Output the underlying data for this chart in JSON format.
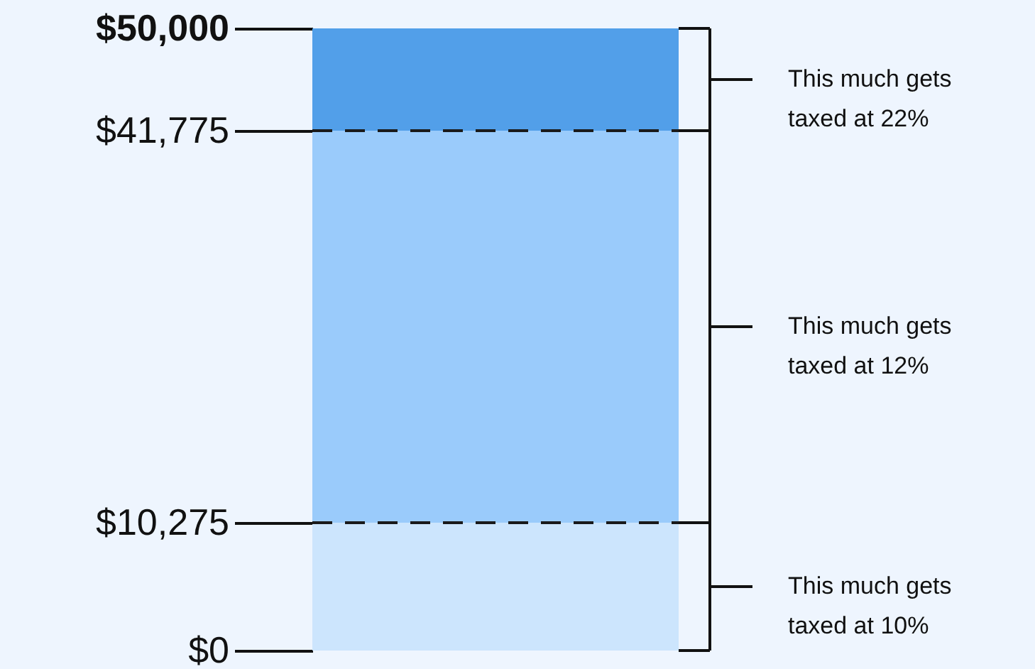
{
  "chart_data": {
    "type": "bar",
    "stacked": true,
    "categories": [
      null
    ],
    "series": [
      {
        "name": "This much gets taxed at 10%",
        "color": "#cce5fd",
        "values": [
          10275
        ]
      },
      {
        "name": "This much gets taxed at 12%",
        "color": "#9acbfb",
        "values": [
          31500
        ]
      },
      {
        "name": "This much gets taxed at 22%",
        "color": "#529fe9",
        "values": [
          8225
        ]
      }
    ],
    "ylim": [
      0,
      50000
    ],
    "yticks": [
      {
        "value": 0,
        "label": "$0"
      },
      {
        "value": 10275,
        "label": "$10,275"
      },
      {
        "value": 41775,
        "label": "$41,775"
      },
      {
        "value": 50000,
        "label": "$50,000"
      }
    ],
    "ref_lines": [
      {
        "axis": "y",
        "value": 10275,
        "color": "#1a1a1a",
        "line_style": "dashed"
      },
      {
        "axis": "y",
        "value": 41775,
        "color": "#1a1a1a",
        "line_style": "dashed"
      }
    ]
  }
}
